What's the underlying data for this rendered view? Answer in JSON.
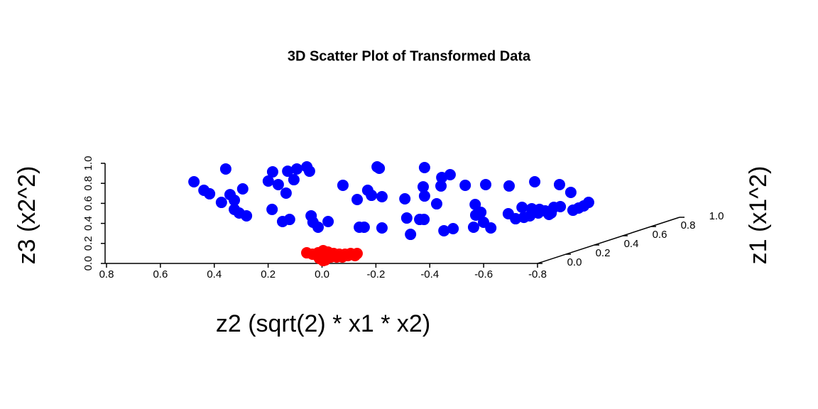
{
  "chart_data": {
    "type": "scatter3d",
    "title": "3D Scatter Plot of Transformed Data",
    "x_label": "z2 (sqrt(2) * x1 * x2)",
    "y_label": "z1 (x1^2)",
    "z_label": "z3 (x2^2)",
    "xlim": [
      0.8,
      -0.8
    ],
    "ylim": [
      0,
      1
    ],
    "zlim": [
      0,
      1
    ],
    "xticks": [
      0.8,
      0.6,
      0.4,
      0.2,
      {
        "value": 0,
        "label": "0.0"
      },
      -0.2,
      -0.4,
      -0.6,
      -0.8
    ],
    "yticks": [
      {
        "value": 0,
        "label": "0.0"
      },
      0.2,
      0.4,
      0.6,
      0.8,
      {
        "value": 1,
        "label": "1.0"
      }
    ],
    "zticks": [
      {
        "value": 0,
        "label": "0.0"
      },
      0.2,
      0.4,
      0.6,
      0.8,
      {
        "value": 1,
        "label": "1.0"
      }
    ],
    "series": [
      {
        "color": "#0000ff",
        "x": [
          0.739,
          0.702,
          0.681,
          0.621,
          0.637,
          0.605,
          0.589,
          0.558,
          0.589,
          0.571,
          0.544,
          0.447,
          0.463,
          0.426,
          0.397,
          0.391,
          0.368,
          0.357,
          0.32,
          0.31,
          0.449,
          0.41,
          0.384,
          0.304,
          0.297,
          0.278,
          0.241,
          0.186,
          0.133,
          0.094,
          0.08,
          0.041,
          0.059,
          0.051,
          0.125,
          0.107,
          0.041,
          -0.044,
          -0.051,
          -0.099,
          -0.115,
          -0.065,
          -0.117,
          -0.112,
          -0.117,
          -0.162,
          -0.178,
          -0.181,
          -0.212,
          -0.189,
          -0.223,
          -0.268,
          -0.305,
          -0.307,
          -0.326,
          -0.336,
          -0.299,
          -0.344,
          -0.363,
          -0.431,
          -0.428,
          -0.455,
          -0.479,
          -0.515,
          -0.526,
          -0.486,
          -0.508,
          -0.565,
          -0.539,
          -0.579,
          -0.587,
          -0.618,
          -0.621,
          -0.66,
          -0.668,
          -0.689,
          -0.708,
          -0.726,
          -0.597,
          -0.544
        ],
        "y": [
          0.5,
          0.5,
          0.5,
          0.5,
          0.5,
          0.5,
          0.5,
          0.5,
          0.5,
          0.5,
          0.5,
          0.5,
          0.5,
          0.5,
          0.5,
          0.5,
          0.5,
          0.5,
          0.5,
          0.5,
          0.5,
          0.5,
          0.5,
          0.5,
          0.5,
          0.5,
          0.5,
          0.5,
          0.5,
          0.5,
          0.5,
          0.5,
          0.5,
          0.5,
          0.5,
          0.5,
          0.5,
          0.5,
          0.5,
          0.5,
          0.5,
          0.5,
          0.5,
          0.5,
          0.5,
          0.5,
          0.5,
          0.5,
          0.5,
          0.5,
          0.5,
          0.5,
          0.5,
          0.5,
          0.5,
          0.5,
          0.5,
          0.5,
          0.5,
          0.5,
          0.5,
          0.5,
          0.5,
          0.5,
          0.5,
          0.5,
          0.5,
          0.5,
          0.5,
          0.5,
          0.5,
          0.5,
          0.5,
          0.5,
          0.5,
          0.5,
          0.5,
          0.5,
          0.5,
          0.5
        ],
        "z": [
          0.585,
          0.5,
          0.465,
          0.713,
          0.379,
          0.457,
          0.401,
          0.514,
          0.309,
          0.273,
          0.245,
          0.684,
          0.592,
          0.557,
          0.472,
          0.691,
          0.606,
          0.713,
          0.734,
          0.691,
          0.309,
          0.188,
          0.209,
          0.245,
          0.181,
          0.131,
          0.188,
          0.55,
          0.408,
          0.5,
          0.45,
          0.436,
          0.734,
          0.72,
          0.131,
          0.131,
          0.124,
          0.415,
          0.223,
          0.209,
          0.209,
          0.06,
          0.727,
          0.535,
          0.443,
          0.365,
          0.543,
          0.628,
          0.656,
          0.096,
          0.117,
          0.55,
          0.358,
          0.252,
          0.28,
          0.181,
          0.131,
          0.557,
          0.124,
          0.543,
          0.266,
          0.216,
          0.33,
          0.316,
          0.585,
          0.23,
          0.245,
          0.294,
          0.273,
          0.259,
          0.273,
          0.557,
          0.337,
          0.479,
          0.301,
          0.323,
          0.344,
          0.379,
          0.33,
          0.309
        ]
      },
      {
        "color": "#ff0000",
        "x": [
          0.083,
          0.062,
          0.041,
          0.022,
          0.004,
          -0.017,
          -0.038,
          -0.059,
          -0.08,
          -0.104,
          0.036,
          0.014,
          -0.007,
          -0.028,
          -0.049,
          -0.07,
          0.022,
          0.043,
          0.009,
          -0.096
        ],
        "y": [
          0.05,
          0.05,
          0.05,
          0.05,
          0.05,
          0.05,
          0.05,
          0.05,
          0.05,
          0.05,
          0.05,
          0.05,
          0.05,
          0.05,
          0.05,
          0.05,
          0.05,
          0.05,
          0.05,
          0.05
        ],
        "z": [
          0.083,
          0.069,
          0.083,
          0.105,
          0.09,
          0.076,
          0.069,
          0.069,
          0.076,
          0.076,
          0.027,
          0.012,
          0.041,
          0.041,
          0.041,
          0.055,
          0.005,
          0.055,
          0.055,
          0.055
        ]
      }
    ]
  }
}
